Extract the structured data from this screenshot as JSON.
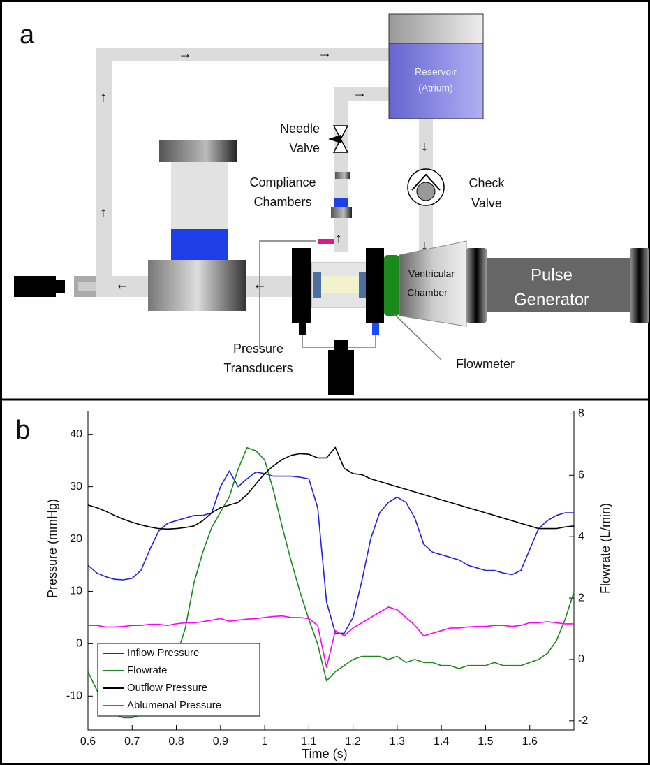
{
  "diagram": {
    "panel_label": "a",
    "reservoir": [
      "Reservoir",
      "(Atrium)"
    ],
    "needle_valve": [
      "Needle",
      "Valve"
    ],
    "compliance_chambers": [
      "Compliance",
      "Chambers"
    ],
    "check_valve": [
      "Check",
      "Valve"
    ],
    "ventricular_chamber": [
      "Ventricular",
      "Chamber"
    ],
    "pulse_generator": [
      "Pulse",
      "Generator"
    ],
    "pressure_transducers": [
      "Pressure",
      "Transducers"
    ],
    "flowmeter": "Flowmeter"
  },
  "chart_data": {
    "type": "line",
    "panel_label": "b",
    "x_label": "Time (s)",
    "y_label": "Pressure (mmHg)",
    "y2_label": "Flowrate (L/min)",
    "x": [
      0.6,
      0.62,
      0.64,
      0.66,
      0.68,
      0.7,
      0.72,
      0.74,
      0.76,
      0.78,
      0.8,
      0.82,
      0.84,
      0.86,
      0.88,
      0.9,
      0.92,
      0.94,
      0.96,
      0.98,
      1,
      1.02,
      1.04,
      1.06,
      1.08,
      1.1,
      1.12,
      1.14,
      1.16,
      1.18,
      1.2,
      1.22,
      1.24,
      1.26,
      1.28,
      1.3,
      1.32,
      1.34,
      1.36,
      1.38,
      1.4,
      1.42,
      1.44,
      1.46,
      1.48,
      1.5,
      1.52,
      1.54,
      1.56,
      1.58,
      1.6,
      1.62,
      1.64,
      1.66,
      1.68,
      1.7
    ],
    "xlim": [
      0.6,
      1.7
    ],
    "xticks": [
      0.6,
      0.7,
      0.8,
      0.9,
      1,
      1.1,
      1.2,
      1.3,
      1.4,
      1.5,
      1.6
    ],
    "ylim": [
      -16.5,
      44.5
    ],
    "yticks": [
      -10,
      0,
      10,
      20,
      30,
      40
    ],
    "y2lim": [
      -2.3,
      8.1
    ],
    "y2ticks": [
      -2,
      0,
      2,
      4,
      6,
      8
    ],
    "legend": "lower left",
    "series": [
      {
        "name": "Inflow Pressure",
        "color": "#2222e0",
        "values": [
          15,
          13.5,
          12.8,
          12.3,
          12.2,
          12.5,
          14,
          18,
          21.5,
          23,
          23.5,
          24,
          24.5,
          24.5,
          25,
          30,
          33,
          30,
          31.5,
          32.8,
          32.5,
          32,
          32,
          32,
          31.8,
          31.5,
          26,
          8,
          2,
          2,
          5,
          12,
          20,
          25,
          27,
          28,
          27,
          24,
          19,
          17.5,
          17,
          16.5,
          16,
          15,
          14.5,
          14,
          14,
          13.5,
          13.2,
          14,
          18,
          22,
          23.5,
          24.5,
          25,
          25
        ]
      },
      {
        "name": "Flowrate",
        "color": "#1a8a1a",
        "axis": "y2",
        "values": [
          -0.4,
          -1,
          -1.5,
          -1.8,
          -1.9,
          -1.9,
          -1.8,
          -1.5,
          -1.1,
          -0.5,
          0.1,
          1,
          2.5,
          3.5,
          4.3,
          4.8,
          5.3,
          6.2,
          6.9,
          6.8,
          6.5,
          5.5,
          4.3,
          3.2,
          2.2,
          1.3,
          0.5,
          -0.7,
          -0.4,
          -0.2,
          0,
          0.1,
          0.1,
          0.1,
          0,
          0.1,
          -0.1,
          0,
          -0.1,
          -0.1,
          -0.2,
          -0.2,
          -0.3,
          -0.2,
          -0.2,
          -0.2,
          -0.1,
          -0.2,
          -0.2,
          -0.2,
          -0.1,
          0,
          0.2,
          0.6,
          1.3,
          2.2
        ]
      },
      {
        "name": "Outflow Pressure",
        "color": "#000000",
        "values": [
          26.5,
          26,
          25.3,
          24.5,
          23.8,
          23.2,
          22.7,
          22.3,
          22,
          21.9,
          22,
          22.2,
          22.5,
          23.5,
          25,
          26,
          26.5,
          27,
          28.5,
          30.5,
          32.5,
          34,
          35.2,
          36,
          36.3,
          36.2,
          35.5,
          35.5,
          37.5,
          33.5,
          32.5,
          32.3,
          31.5,
          31,
          30.5,
          30,
          29.5,
          29,
          28.5,
          28,
          27.5,
          27,
          26.5,
          26,
          25.5,
          25,
          24.5,
          24,
          23.5,
          23,
          22.5,
          22,
          22,
          22,
          22.3,
          22.5
        ]
      },
      {
        "name": "Ablumenal Pressure",
        "color": "#ff00ff",
        "values": [
          3.5,
          3.5,
          3.2,
          3.2,
          3.3,
          3.5,
          3.5,
          3.7,
          3.7,
          3.5,
          3.8,
          4,
          4,
          4.2,
          4.5,
          4.8,
          4.3,
          4.5,
          4.7,
          4.8,
          5,
          5.2,
          5.3,
          5,
          5,
          4.8,
          3.5,
          -4.5,
          2.5,
          1.5,
          3,
          4,
          5,
          6,
          7,
          6.5,
          5,
          3.5,
          1.5,
          2,
          2.5,
          3,
          3,
          3.2,
          3.3,
          3.3,
          3.5,
          3.5,
          3.3,
          3.5,
          4,
          4,
          4.2,
          4,
          3.8,
          3.8
        ]
      }
    ]
  }
}
